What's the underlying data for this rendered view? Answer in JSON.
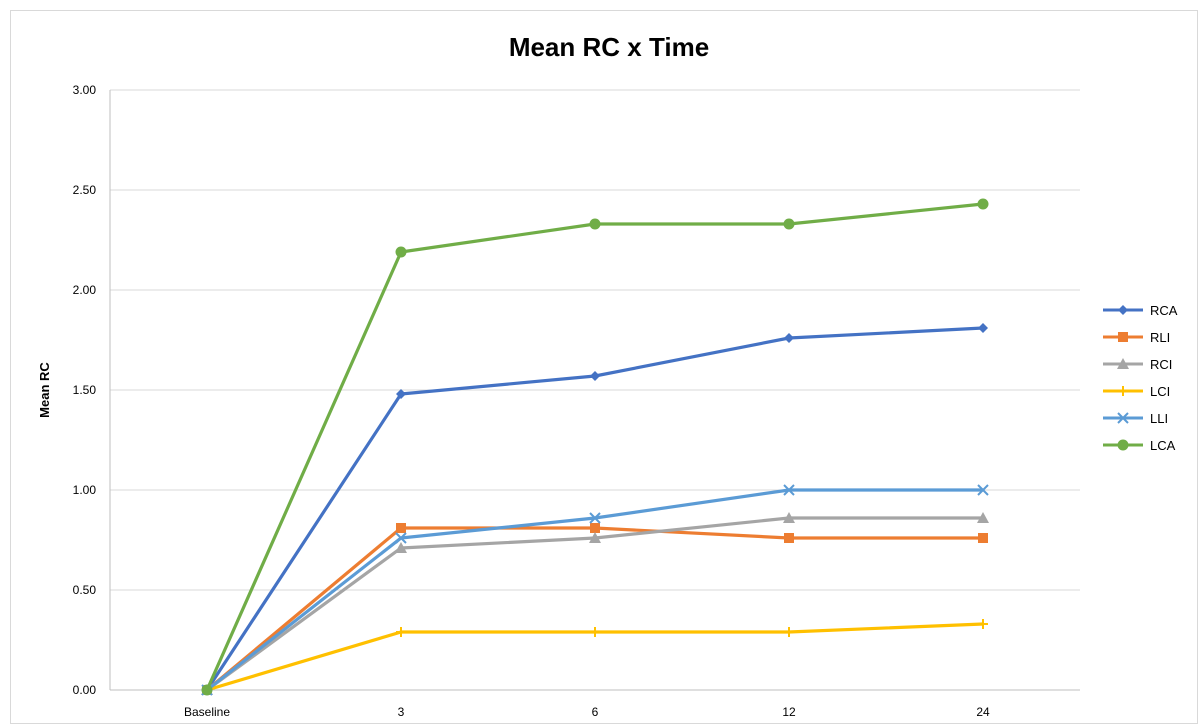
{
  "chart_data": {
    "type": "line",
    "title": "Mean RC x Time",
    "xlabel": "",
    "ylabel": "Mean RC",
    "categories": [
      "Baseline",
      "3",
      "6",
      "12",
      "24"
    ],
    "ylim": [
      0,
      3
    ],
    "yticks": [
      "0.00",
      "0.50",
      "1.00",
      "1.50",
      "2.00",
      "2.50",
      "3.00"
    ],
    "grid": true,
    "legend_position": "right",
    "series": [
      {
        "name": "RCA",
        "color": "#4472c4",
        "marker": "diamond",
        "values": [
          0,
          1.48,
          1.57,
          1.76,
          1.81
        ]
      },
      {
        "name": "RLI",
        "color": "#ed7d31",
        "marker": "square",
        "values": [
          0,
          0.81,
          0.81,
          0.76,
          0.76
        ]
      },
      {
        "name": "RCI",
        "color": "#a5a5a5",
        "marker": "triangle",
        "values": [
          0,
          0.71,
          0.76,
          0.86,
          0.86
        ]
      },
      {
        "name": "LCI",
        "color": "#ffc000",
        "marker": "cross",
        "values": [
          0,
          0.29,
          0.29,
          0.29,
          0.33
        ]
      },
      {
        "name": "LLI",
        "color": "#5b9bd5",
        "marker": "x",
        "values": [
          0,
          0.76,
          0.86,
          1.0,
          1.0
        ]
      },
      {
        "name": "LCA",
        "color": "#70ad47",
        "marker": "circle",
        "values": [
          0,
          2.19,
          2.33,
          2.33,
          2.43
        ]
      }
    ]
  }
}
